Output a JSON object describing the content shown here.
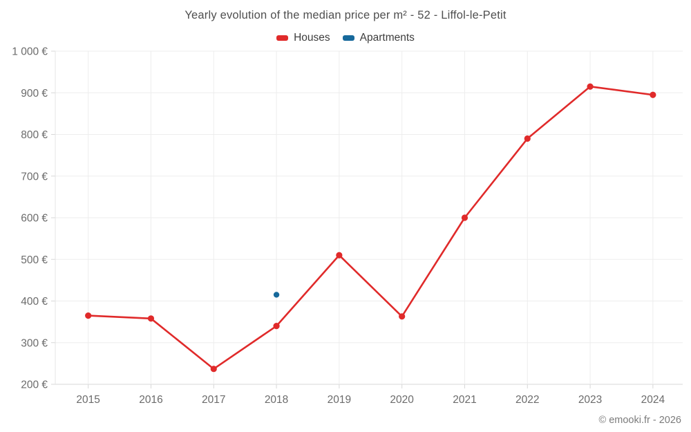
{
  "title": "Yearly evolution of the median price per m² - 52 - Liffol-le-Petit",
  "footer": "© emooki.fr - 2026",
  "chart_data": {
    "type": "line",
    "title": "Yearly evolution of the median price per m² - 52 - Liffol-le-Petit",
    "categories": [
      "2015",
      "2016",
      "2017",
      "2018",
      "2019",
      "2020",
      "2021",
      "2022",
      "2023",
      "2024"
    ],
    "series": [
      {
        "name": "Houses",
        "color": "#e02a2a",
        "marker": "circle",
        "values": [
          365,
          358,
          237,
          340,
          510,
          363,
          600,
          790,
          915,
          895
        ]
      },
      {
        "name": "Apartments",
        "color": "#17699b",
        "marker": "circle",
        "values": [
          null,
          null,
          null,
          415,
          null,
          null,
          null,
          null,
          null,
          null
        ]
      }
    ],
    "xlabel": "",
    "ylabel": "",
    "ylim": [
      200,
      1000
    ],
    "ytick_step": 100,
    "ytick_labels": [
      "200 €",
      "300 €",
      "400 €",
      "500 €",
      "600 €",
      "700 €",
      "800 €",
      "900 €",
      "1 000 €"
    ],
    "grid": true,
    "legend_position": "top-center",
    "colors": {
      "gridline": "#ededed",
      "axis_line": "#d7d7d7",
      "tick_label": "#6b6b6b",
      "title_text": "#4f4f4f",
      "legend_text": "#3d3d3d",
      "footer_text": "#7b7b7b"
    }
  }
}
